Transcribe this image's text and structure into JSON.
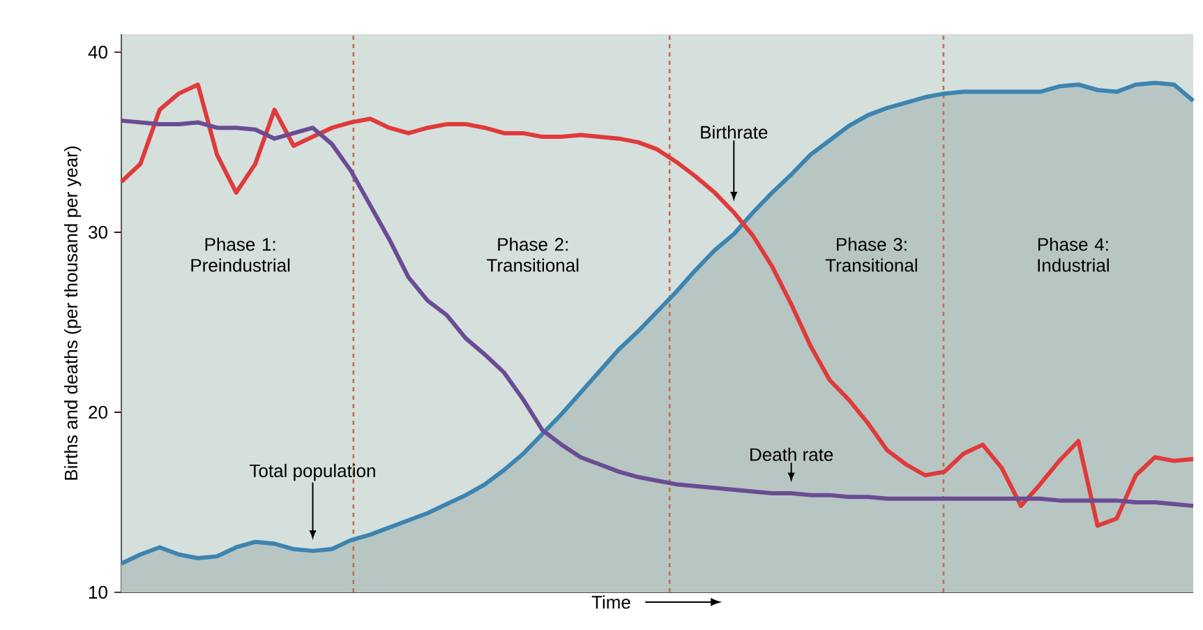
{
  "chart_data": {
    "type": "line",
    "xlabel": "Time",
    "ylabel": "Births and deaths (per thousand per year)",
    "categories": [
      null,
      null,
      null,
      null,
      null,
      null,
      null,
      null,
      null,
      null,
      null,
      null,
      null,
      null,
      null,
      null,
      null,
      null,
      null,
      null,
      null,
      null,
      null,
      null,
      null,
      null,
      null,
      null,
      null,
      null,
      null,
      null,
      null,
      null,
      null,
      null,
      null,
      null,
      null,
      null,
      null,
      null,
      null,
      null,
      null,
      null,
      null,
      null,
      null,
      null,
      null,
      null,
      null,
      null,
      null,
      null,
      null
    ],
    "ylim": [
      10,
      41
    ],
    "yticks": [
      10,
      20,
      30,
      40
    ],
    "tick_labels": "y",
    "series": [
      {
        "name": "Birthrate",
        "color": "#e03a3a",
        "values": [
          32.8,
          33.8,
          36.8,
          37.7,
          38.2,
          34.3,
          32.2,
          33.8,
          36.8,
          34.8,
          35.3,
          35.8,
          36.1,
          36.3,
          35.8,
          35.5,
          35.8,
          36.0,
          36.0,
          35.8,
          35.5,
          35.5,
          35.3,
          35.3,
          35.4,
          35.3,
          35.2,
          35.0,
          34.6,
          33.9,
          33.1,
          32.2,
          31.1,
          29.8,
          28.1,
          26.0,
          23.7,
          21.8,
          20.7,
          19.4,
          17.9,
          17.1,
          16.5,
          16.7,
          17.7,
          18.2,
          16.9,
          14.8,
          16.0,
          17.3,
          18.4,
          13.7,
          14.1,
          16.5,
          17.5,
          17.3,
          17.4
        ]
      },
      {
        "name": "Death rate",
        "color": "#6a4c93",
        "values": [
          36.2,
          36.1,
          36.0,
          36.0,
          36.1,
          35.8,
          35.8,
          35.7,
          35.2,
          35.5,
          35.8,
          34.9,
          33.4,
          31.5,
          29.6,
          27.5,
          26.2,
          25.4,
          24.1,
          23.2,
          22.2,
          20.7,
          19.0,
          18.2,
          17.5,
          17.1,
          16.7,
          16.4,
          16.2,
          16.0,
          15.9,
          15.8,
          15.7,
          15.6,
          15.5,
          15.5,
          15.4,
          15.4,
          15.3,
          15.3,
          15.2,
          15.2,
          15.2,
          15.2,
          15.2,
          15.2,
          15.2,
          15.2,
          15.2,
          15.1,
          15.1,
          15.1,
          15.1,
          15.0,
          15.0,
          14.9,
          14.8
        ]
      },
      {
        "name": "Total population",
        "type": "area",
        "color": "#3d84b0",
        "values": [
          11.6,
          12.1,
          12.5,
          12.1,
          11.9,
          12.0,
          12.5,
          12.8,
          12.7,
          12.4,
          12.3,
          12.4,
          12.9,
          13.2,
          13.6,
          14.0,
          14.4,
          14.9,
          15.4,
          16.0,
          16.8,
          17.7,
          18.8,
          19.9,
          21.1,
          22.3,
          23.5,
          24.5,
          25.6,
          26.7,
          27.9,
          29.0,
          29.9,
          31.1,
          32.2,
          33.2,
          34.3,
          35.1,
          35.9,
          36.5,
          36.9,
          37.2,
          37.5,
          37.7,
          37.8,
          37.8,
          37.8,
          37.8,
          37.8,
          38.1,
          38.2,
          37.9,
          37.8,
          38.2,
          38.3,
          38.2,
          37.3
        ]
      }
    ],
    "annotations": [
      "Phase 1: Preindustrial",
      "Phase 2: Transitional",
      "Phase 3: Transitional",
      "Phase 4: Industrial"
    ]
  }
}
